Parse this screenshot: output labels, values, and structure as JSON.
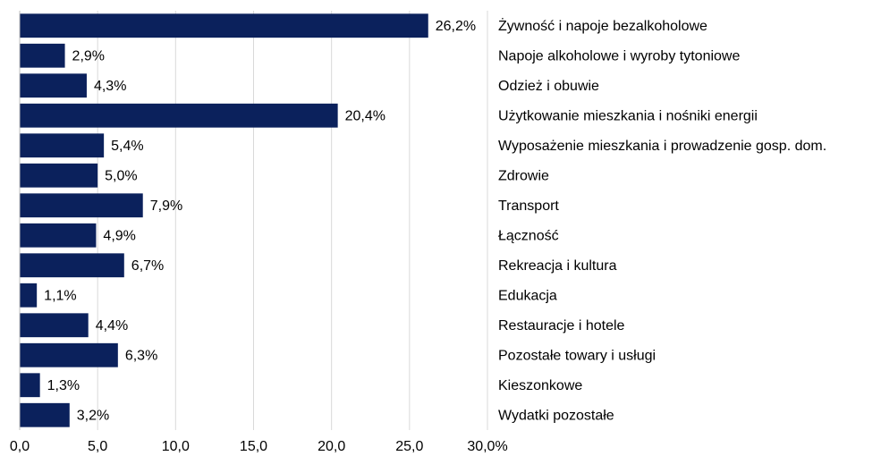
{
  "chart_data": {
    "type": "barh",
    "categories": [
      "Żywność i napoje bezalkoholowe",
      "Napoje alkoholowe i wyroby tytoniowe",
      "Odzież i obuwie",
      "Użytkowanie mieszkania i nośniki energii",
      "Wyposażenie mieszkania i prowadzenie gosp. dom.",
      "Zdrowie",
      "Transport",
      "Łączność",
      "Rekreacja i kultura",
      "Edukacja",
      "Restauracje i hotele",
      "Pozostałe towary i usługi",
      "Kieszonkowe",
      "Wydatki pozostałe"
    ],
    "values": [
      26.2,
      2.9,
      4.3,
      20.4,
      5.4,
      5.0,
      7.9,
      4.9,
      6.7,
      1.1,
      4.4,
      6.3,
      1.3,
      3.2
    ],
    "value_labels": [
      "26,2%",
      "2,9%",
      "4,3%",
      "20,4%",
      "5,4%",
      "5,0%",
      "7,9%",
      "4,9%",
      "6,7%",
      "1,1%",
      "4,4%",
      "6,3%",
      "1,3%",
      "3,2%"
    ],
    "color": "#0b215c",
    "xlim": [
      0,
      30
    ],
    "xticks": [
      {
        "value": 0,
        "label": "0,0"
      },
      {
        "value": 5,
        "label": "5,0"
      },
      {
        "value": 10,
        "label": "10,0"
      },
      {
        "value": 15,
        "label": "15,0"
      },
      {
        "value": 20,
        "label": "20,0"
      },
      {
        "value": 25,
        "label": "25,0"
      },
      {
        "value": 30,
        "label": "30,0%"
      }
    ],
    "grid": true
  }
}
